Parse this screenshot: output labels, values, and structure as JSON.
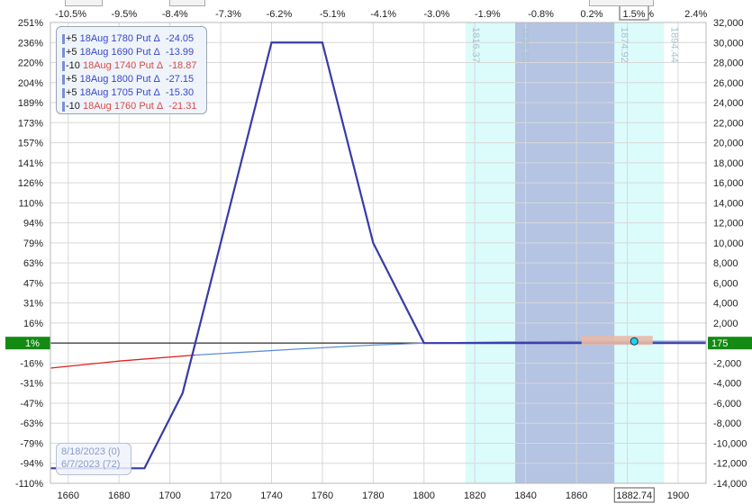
{
  "legend": [
    {
      "qty": "+5",
      "desc": "18Aug 1780 Put Δ",
      "delta": "-24.05",
      "side": "long"
    },
    {
      "qty": "+5",
      "desc": "18Aug 1690 Put Δ",
      "delta": "-13.99",
      "side": "long"
    },
    {
      "qty": "-10",
      "desc": "18Aug 1740 Put Δ",
      "delta": "-18.87",
      "side": "short"
    },
    {
      "qty": "+5",
      "desc": "18Aug 1800 Put Δ",
      "delta": "-27.15",
      "side": "long"
    },
    {
      "qty": "+5",
      "desc": "18Aug 1705 Put Δ",
      "delta": "-15.30",
      "side": "long"
    },
    {
      "qty": "-10",
      "desc": "18Aug 1760 Put Δ",
      "delta": "-21.31",
      "side": "short"
    }
  ],
  "dates": {
    "expiry": "8/18/2023 (0)",
    "current": "6/7/2023 (72)"
  },
  "colors": {
    "expiry_line": "#3a3aa8",
    "t0_line": "#5b8fd6",
    "t0_neg": "#e02020",
    "sd_outer": "#dcfbfb",
    "sd_inner": "#b4c4e2",
    "marker": "#22d3e8",
    "green_label": "#138a13",
    "zero_line": "#000000",
    "range_box": "#e8b9a6"
  },
  "chart_data": {
    "type": "line",
    "x_axis_bottom": {
      "ticks": [
        1660,
        1680,
        1700,
        1720,
        1740,
        1760,
        1780,
        1800,
        1820,
        1840,
        1860,
        1880,
        1900
      ],
      "range": [
        1653,
        1911
      ]
    },
    "x_axis_top": {
      "labels": [
        "-10.5%",
        "-9.5%",
        "-8.4%",
        "-7.3%",
        "-6.2%",
        "-5.1%",
        "-4.1%",
        "-3.0%",
        "-1.9%",
        "-0.8%",
        "0.2%",
        "1.3%",
        "2.4%"
      ],
      "highlight": "1.5%"
    },
    "y_axis_right": {
      "ticks": [
        32000,
        30000,
        28000,
        26000,
        24000,
        22000,
        20000,
        18000,
        16000,
        14000,
        12000,
        10000,
        8000,
        6000,
        4000,
        2000,
        0,
        -2000,
        -4000,
        -6000,
        -8000,
        -10000,
        -12000,
        -14000
      ],
      "range": [
        -14000,
        32000
      ]
    },
    "y_axis_left": {
      "labels": [
        "251%",
        "236%",
        "220%",
        "204%",
        "189%",
        "173%",
        "157%",
        "141%",
        "126%",
        "110%",
        "94%",
        "79%",
        "63%",
        "47%",
        "31%",
        "16%",
        "1%",
        "-16%",
        "-31%",
        "-47%",
        "-63%",
        "-79%",
        "-94%",
        "-110%"
      ]
    },
    "series": [
      {
        "name": "8/18/2023 (0)",
        "x": [
          1653,
          1690,
          1705,
          1740,
          1760,
          1780,
          1800,
          1911
        ],
        "y": [
          -12500,
          -12500,
          -5000,
          30000,
          30000,
          10000,
          0,
          0
        ]
      },
      {
        "name": "6/7/2023 (72)",
        "x": [
          1653,
          1680,
          1710,
          1750,
          1780,
          1800,
          1830,
          1860,
          1885,
          1911
        ],
        "y": [
          -2500,
          -1800,
          -1200,
          -600,
          -200,
          0,
          100,
          150,
          175,
          175
        ]
      }
    ],
    "sd_bands": {
      "outer": [
        1816.37,
        1894.44
      ],
      "inner": [
        1835.88,
        1874.92
      ]
    },
    "band_labels": [
      "1816.37",
      "1835.88",
      "1874.92",
      "1894.44"
    ],
    "current_price": 1882.74,
    "current_pnl": 175,
    "zero_label_left": "1%",
    "zero_label_right": "175"
  }
}
